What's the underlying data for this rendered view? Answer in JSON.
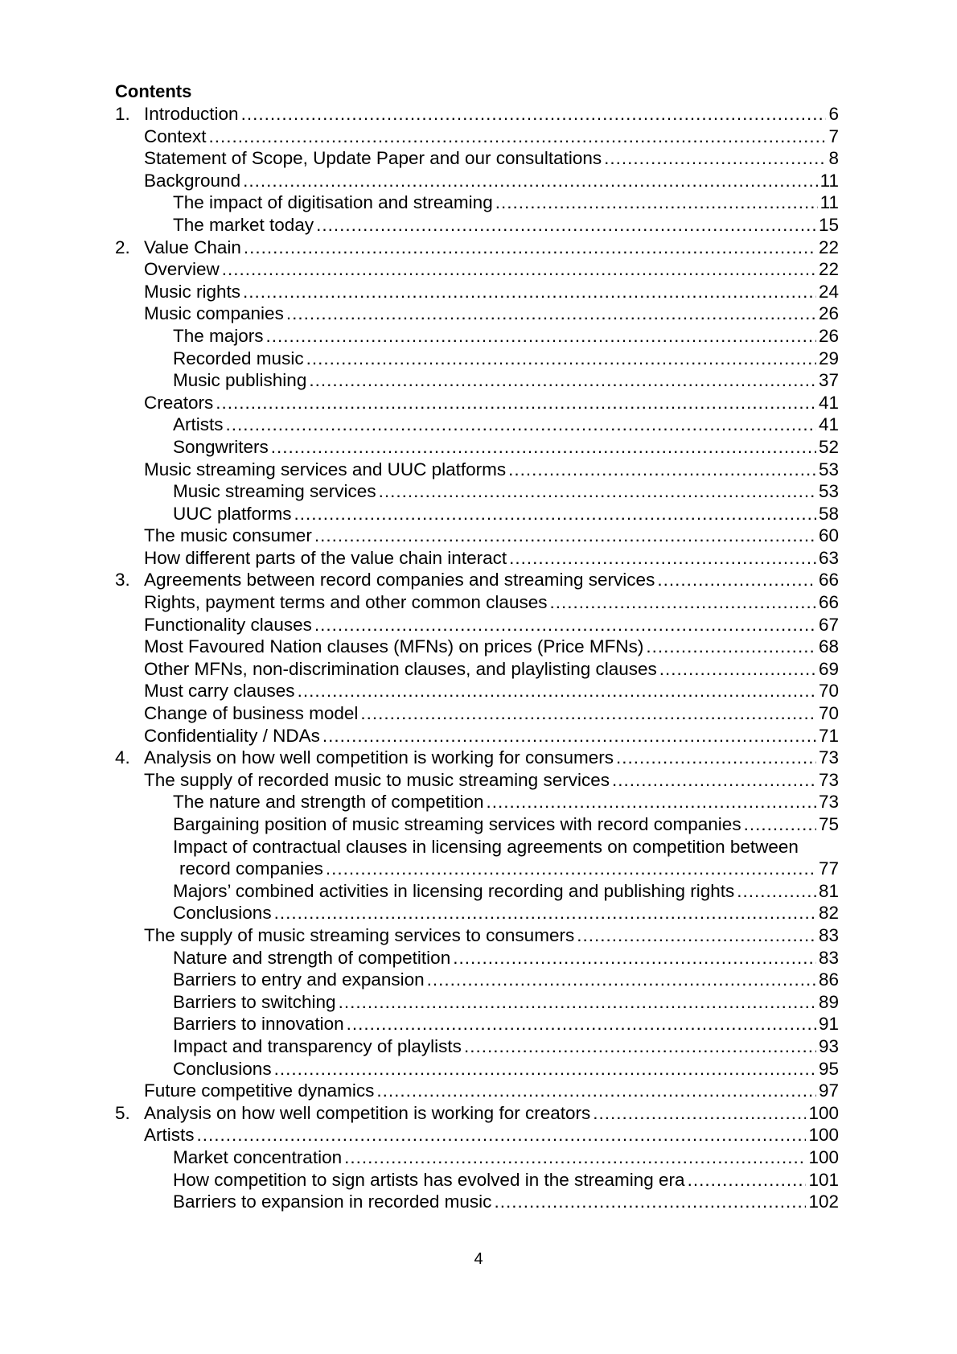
{
  "title": "Contents",
  "entries": [
    {
      "n": "1.",
      "t": "Introduction",
      "p": "6",
      "lvl": 0
    },
    {
      "t": "Context",
      "p": "7",
      "lvl": 1
    },
    {
      "t": "Statement of Scope, Update Paper and our consultations",
      "p": "8",
      "lvl": 1
    },
    {
      "t": "Background",
      "p": "11",
      "lvl": 1
    },
    {
      "t": "The impact of digitisation and streaming",
      "p": "11",
      "lvl": 2
    },
    {
      "t": "The market today",
      "p": "15",
      "lvl": 2
    },
    {
      "n": "2.",
      "t": "Value Chain",
      "p": "22",
      "lvl": 0
    },
    {
      "t": "Overview",
      "p": "22",
      "lvl": 1
    },
    {
      "t": "Music rights",
      "p": "24",
      "lvl": 1
    },
    {
      "t": "Music companies",
      "p": "26",
      "lvl": 1
    },
    {
      "t": "The majors",
      "p": "26",
      "lvl": 2
    },
    {
      "t": "Recorded music",
      "p": "29",
      "lvl": 2
    },
    {
      "t": "Music publishing",
      "p": "37",
      "lvl": 2
    },
    {
      "t": "Creators",
      "p": "41",
      "lvl": 1
    },
    {
      "t": "Artists",
      "p": "41",
      "lvl": 2
    },
    {
      "t": "Songwriters",
      "p": "52",
      "lvl": 2
    },
    {
      "t": "Music streaming services and UUC platforms",
      "p": "53",
      "lvl": 1
    },
    {
      "t": "Music streaming services",
      "p": "53",
      "lvl": 2
    },
    {
      "t": "UUC platforms",
      "p": "58",
      "lvl": 2
    },
    {
      "t": "The music consumer",
      "p": "60",
      "lvl": 1
    },
    {
      "t": "How different parts of the value chain interact",
      "p": "63",
      "lvl": 1
    },
    {
      "n": "3.",
      "t": "Agreements between record companies and streaming services",
      "p": "66",
      "lvl": 0
    },
    {
      "t": "Rights, payment terms and other common clauses",
      "p": "66",
      "lvl": 1
    },
    {
      "t": "Functionality clauses",
      "p": "67",
      "lvl": 1
    },
    {
      "t": "Most Favoured Nation clauses (MFNs) on prices (Price MFNs)",
      "p": "68",
      "lvl": 1
    },
    {
      "t": "Other MFNs, non-discrimination clauses, and playlisting clauses",
      "p": "69",
      "lvl": 1
    },
    {
      "t": "Must carry clauses",
      "p": "70",
      "lvl": 1
    },
    {
      "t": "Change of business model",
      "p": "70",
      "lvl": 1
    },
    {
      "t": "Confidentiality / NDAs",
      "p": "71",
      "lvl": 1
    },
    {
      "n": "4.",
      "t": "Analysis on how well competition is working for consumers",
      "p": "73",
      "lvl": 0
    },
    {
      "t": "The supply of recorded music to music streaming services",
      "p": "73",
      "lvl": 1
    },
    {
      "t": "The nature and strength of competition",
      "p": "73",
      "lvl": 2
    },
    {
      "t": "Bargaining position of music streaming services with record companies",
      "p": "75",
      "lvl": 2
    },
    {
      "t0": "Impact of contractual clauses in licensing agreements on competition between",
      "t": "record companies",
      "p": "77",
      "lvl": 3
    },
    {
      "t": "Majors’ combined activities in licensing recording and publishing rights",
      "p": "81",
      "lvl": 2
    },
    {
      "t": "Conclusions",
      "p": "82",
      "lvl": 2
    },
    {
      "t": "The supply of music streaming services to consumers",
      "p": "83",
      "lvl": 1
    },
    {
      "t": "Nature and strength of competition",
      "p": "83",
      "lvl": 2
    },
    {
      "t": "Barriers to entry and expansion",
      "p": "86",
      "lvl": 2
    },
    {
      "t": "Barriers to switching",
      "p": "89",
      "lvl": 2
    },
    {
      "t": "Barriers to innovation",
      "p": "91",
      "lvl": 2
    },
    {
      "t": "Impact and transparency of playlists",
      "p": "93",
      "lvl": 2
    },
    {
      "t": "Conclusions",
      "p": "95",
      "lvl": 2
    },
    {
      "t": "Future competitive dynamics",
      "p": "97",
      "lvl": 1
    },
    {
      "n": "5.",
      "t": "Analysis on how well competition is working for creators",
      "p": "100",
      "lvl": 0
    },
    {
      "t": "Artists",
      "p": "100",
      "lvl": 1
    },
    {
      "t": "Market concentration",
      "p": "100",
      "lvl": 2
    },
    {
      "t": "How competition to sign artists has evolved in the streaming era",
      "p": "101",
      "lvl": 2
    },
    {
      "t": "Barriers to expansion in recorded music",
      "p": "102",
      "lvl": 2
    }
  ],
  "page_number": "4"
}
